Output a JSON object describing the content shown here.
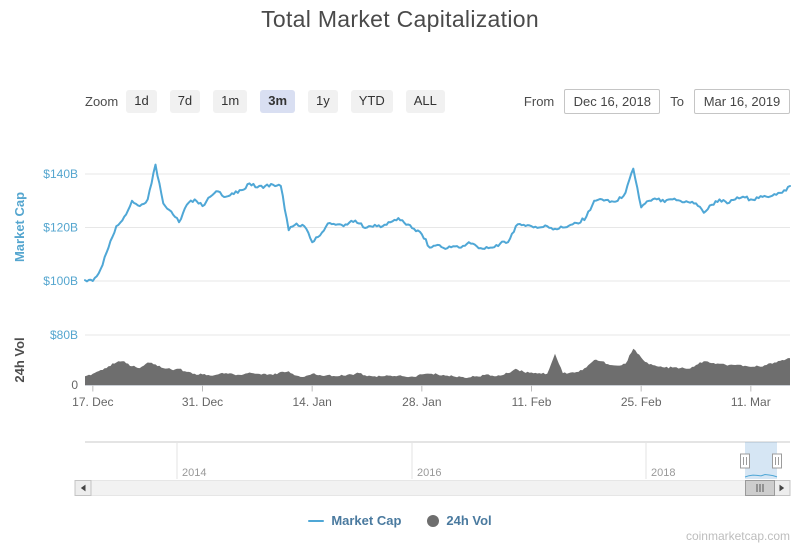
{
  "header": {
    "title": "Total Market Capitalization"
  },
  "toolbar": {
    "zoom_label": "Zoom",
    "buttons": [
      {
        "label": "1d",
        "selected": false
      },
      {
        "label": "7d",
        "selected": false
      },
      {
        "label": "1m",
        "selected": false
      },
      {
        "label": "3m",
        "selected": true
      },
      {
        "label": "1y",
        "selected": false
      },
      {
        "label": "YTD",
        "selected": false
      },
      {
        "label": "ALL",
        "selected": false
      }
    ],
    "from_label": "From",
    "from_value": "Dec 16, 2018",
    "to_label": "To",
    "to_value": "Mar 16, 2019"
  },
  "colors": {
    "market_cap_blue": "#4fa7d6",
    "axis_label_blue": "#55a6cf",
    "volume_gray": "#6e6e6e",
    "selected_button_bg": "#d9dff2",
    "legend_text": "#4a7a9f",
    "gridline": "#e7e7e7",
    "axis_text_gray": "#666666"
  },
  "legend": [
    {
      "name": "Market Cap",
      "symbol": "line",
      "color": "#4fa7d6"
    },
    {
      "name": "24h Vol",
      "symbol": "circle",
      "color": "#6e6e6e"
    }
  ],
  "navigator": {
    "year_labels": [
      "2014",
      "2016",
      "2018"
    ]
  },
  "watermark": "coinmarketcap.com",
  "chart_data": [
    {
      "type": "line",
      "name": "Market Cap",
      "units": "USD billions",
      "x_start": "Dec 16, 2018",
      "x_end": "Mar 16, 2019",
      "x_step": "1 day",
      "xticklabels": [
        "17. Dec",
        "31. Dec",
        "14. Jan",
        "28. Jan",
        "11. Feb",
        "25. Feb",
        "11. Mar"
      ],
      "yticks": [
        {
          "label": "$140B",
          "value": 140
        },
        {
          "label": "$120B",
          "value": 120
        },
        {
          "label": "$100B",
          "value": 100
        }
      ],
      "ylim": [
        97,
        152
      ],
      "grid": true,
      "color": "#4fa7d6",
      "values": [
        100.3,
        100.0,
        104.5,
        112.5,
        120.5,
        124.0,
        130.0,
        128.0,
        130.5,
        143.5,
        129.0,
        126.0,
        122.0,
        128.5,
        130.5,
        128.0,
        131.5,
        133.5,
        131.5,
        132.5,
        134.0,
        136.5,
        135.0,
        135.5,
        136.0,
        135.5,
        119.0,
        121.5,
        120.5,
        114.5,
        117.0,
        121.5,
        121.0,
        120.5,
        122.5,
        121.5,
        120.0,
        121.0,
        120.5,
        122.0,
        123.5,
        121.0,
        119.5,
        117.5,
        112.5,
        113.5,
        112.0,
        113.0,
        112.5,
        114.5,
        113.0,
        112.0,
        112.5,
        114.0,
        114.5,
        120.5,
        121.0,
        120.5,
        120.0,
        120.5,
        119.5,
        120.0,
        121.0,
        121.5,
        124.0,
        130.0,
        130.5,
        129.5,
        130.0,
        133.0,
        142.0,
        127.5,
        130.0,
        130.5,
        129.5,
        130.5,
        130.0,
        129.5,
        129.0,
        125.5,
        128.5,
        130.5,
        129.0,
        130.5,
        131.5,
        130.5,
        131.0,
        131.5,
        132.5,
        133.0,
        135.5
      ]
    },
    {
      "type": "area",
      "name": "24h Vol",
      "units": "USD billions",
      "x_start": "Dec 16, 2018",
      "x_end": "Mar 16, 2019",
      "x_step": "1 day",
      "yticks": [
        {
          "label": "$80B",
          "value": 80
        },
        {
          "label": "0",
          "value": 0
        }
      ],
      "ylim": [
        0,
        80
      ],
      "grid": true,
      "color": "#6e6e6e",
      "values": [
        14,
        18,
        24,
        30,
        36,
        38,
        30,
        27,
        36,
        33,
        27,
        25,
        26,
        21,
        18,
        17,
        15,
        17,
        19,
        17,
        16,
        20,
        18,
        18,
        16,
        21,
        22,
        15,
        13,
        18,
        16,
        16,
        14,
        15,
        17,
        19,
        14,
        14,
        14,
        15,
        15,
        13,
        13,
        17,
        18,
        17,
        15,
        14,
        13,
        12,
        14,
        16,
        15,
        15,
        19,
        26,
        21,
        20,
        19,
        18,
        50,
        19,
        20,
        21,
        28,
        40,
        38,
        32,
        31,
        34,
        58,
        44,
        33,
        30,
        28,
        28,
        27,
        26,
        32,
        38,
        35,
        34,
        31,
        32,
        30,
        29,
        30,
        32,
        36,
        40,
        43
      ]
    }
  ]
}
